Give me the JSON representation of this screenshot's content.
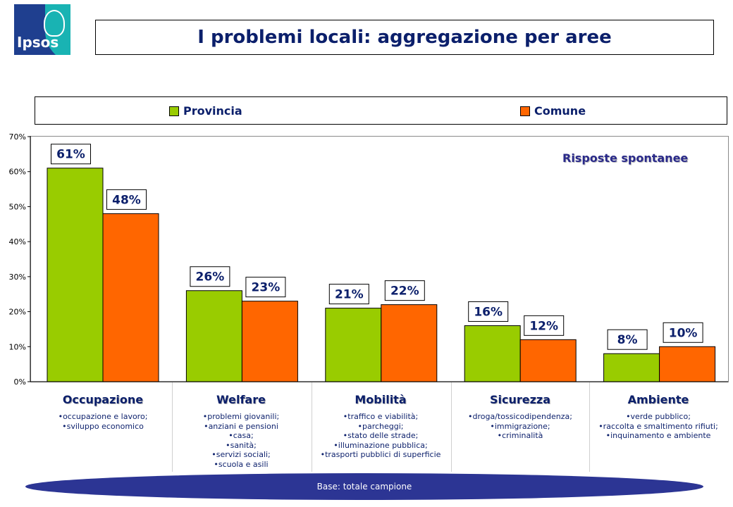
{
  "logo": {
    "text": "Ipsos"
  },
  "title": "I problemi locali: aggregazione per aree",
  "annotation": "Risposte spontanee",
  "base_note": "Base: totale campione",
  "colors": {
    "provincia": "#99cc00",
    "comune": "#ff6600",
    "title": "#0b1f6b",
    "ellipse": "#2c3594"
  },
  "categories": [
    {
      "label": "Occupazione",
      "lines": [
        "•occupazione e lavoro;",
        "•sviluppo economico"
      ]
    },
    {
      "label": "Welfare",
      "lines": [
        "•problemi giovanili;",
        "•anziani e pensioni",
        "•casa;",
        "•sanità;",
        "•servizi sociali;",
        "•scuola e asili"
      ]
    },
    {
      "label": "Mobilità",
      "lines": [
        "•traffico e viabilità;",
        "•parcheggi;",
        "•stato delle strade;",
        "•illuminazione pubblica;",
        "•trasporti pubblici di superficie"
      ]
    },
    {
      "label": "Sicurezza",
      "lines": [
        "•droga/tossicodipendenza;",
        "•immigrazione;",
        "•criminalità"
      ]
    },
    {
      "label": "Ambiente",
      "lines": [
        "•verde pubblico;",
        "•raccolta e smaltimento rifiuti;",
        "•inquinamento e ambiente"
      ]
    }
  ],
  "chart_data": {
    "type": "bar",
    "title": "I problemi locali: aggregazione per aree",
    "categories": [
      "Occupazione",
      "Welfare",
      "Mobilità",
      "Sicurezza",
      "Ambiente"
    ],
    "series": [
      {
        "name": "Provincia",
        "values": [
          61,
          26,
          21,
          16,
          8
        ],
        "labels": [
          "61%",
          "26%",
          "21%",
          "16%",
          "8%"
        ],
        "color": "#99cc00"
      },
      {
        "name": "Comune",
        "values": [
          48,
          23,
          22,
          12,
          10
        ],
        "labels": [
          "48%",
          "23%",
          "22%",
          "12%",
          "10%"
        ],
        "color": "#ff6600"
      }
    ],
    "ylim": [
      0,
      70
    ],
    "yticks": [
      "0%",
      "10%",
      "20%",
      "30%",
      "40%",
      "50%",
      "60%",
      "70%"
    ],
    "ytick_values": [
      0,
      10,
      20,
      30,
      40,
      50,
      60,
      70
    ],
    "legend_position": "top",
    "grid": false,
    "xlabel": "",
    "ylabel": ""
  }
}
